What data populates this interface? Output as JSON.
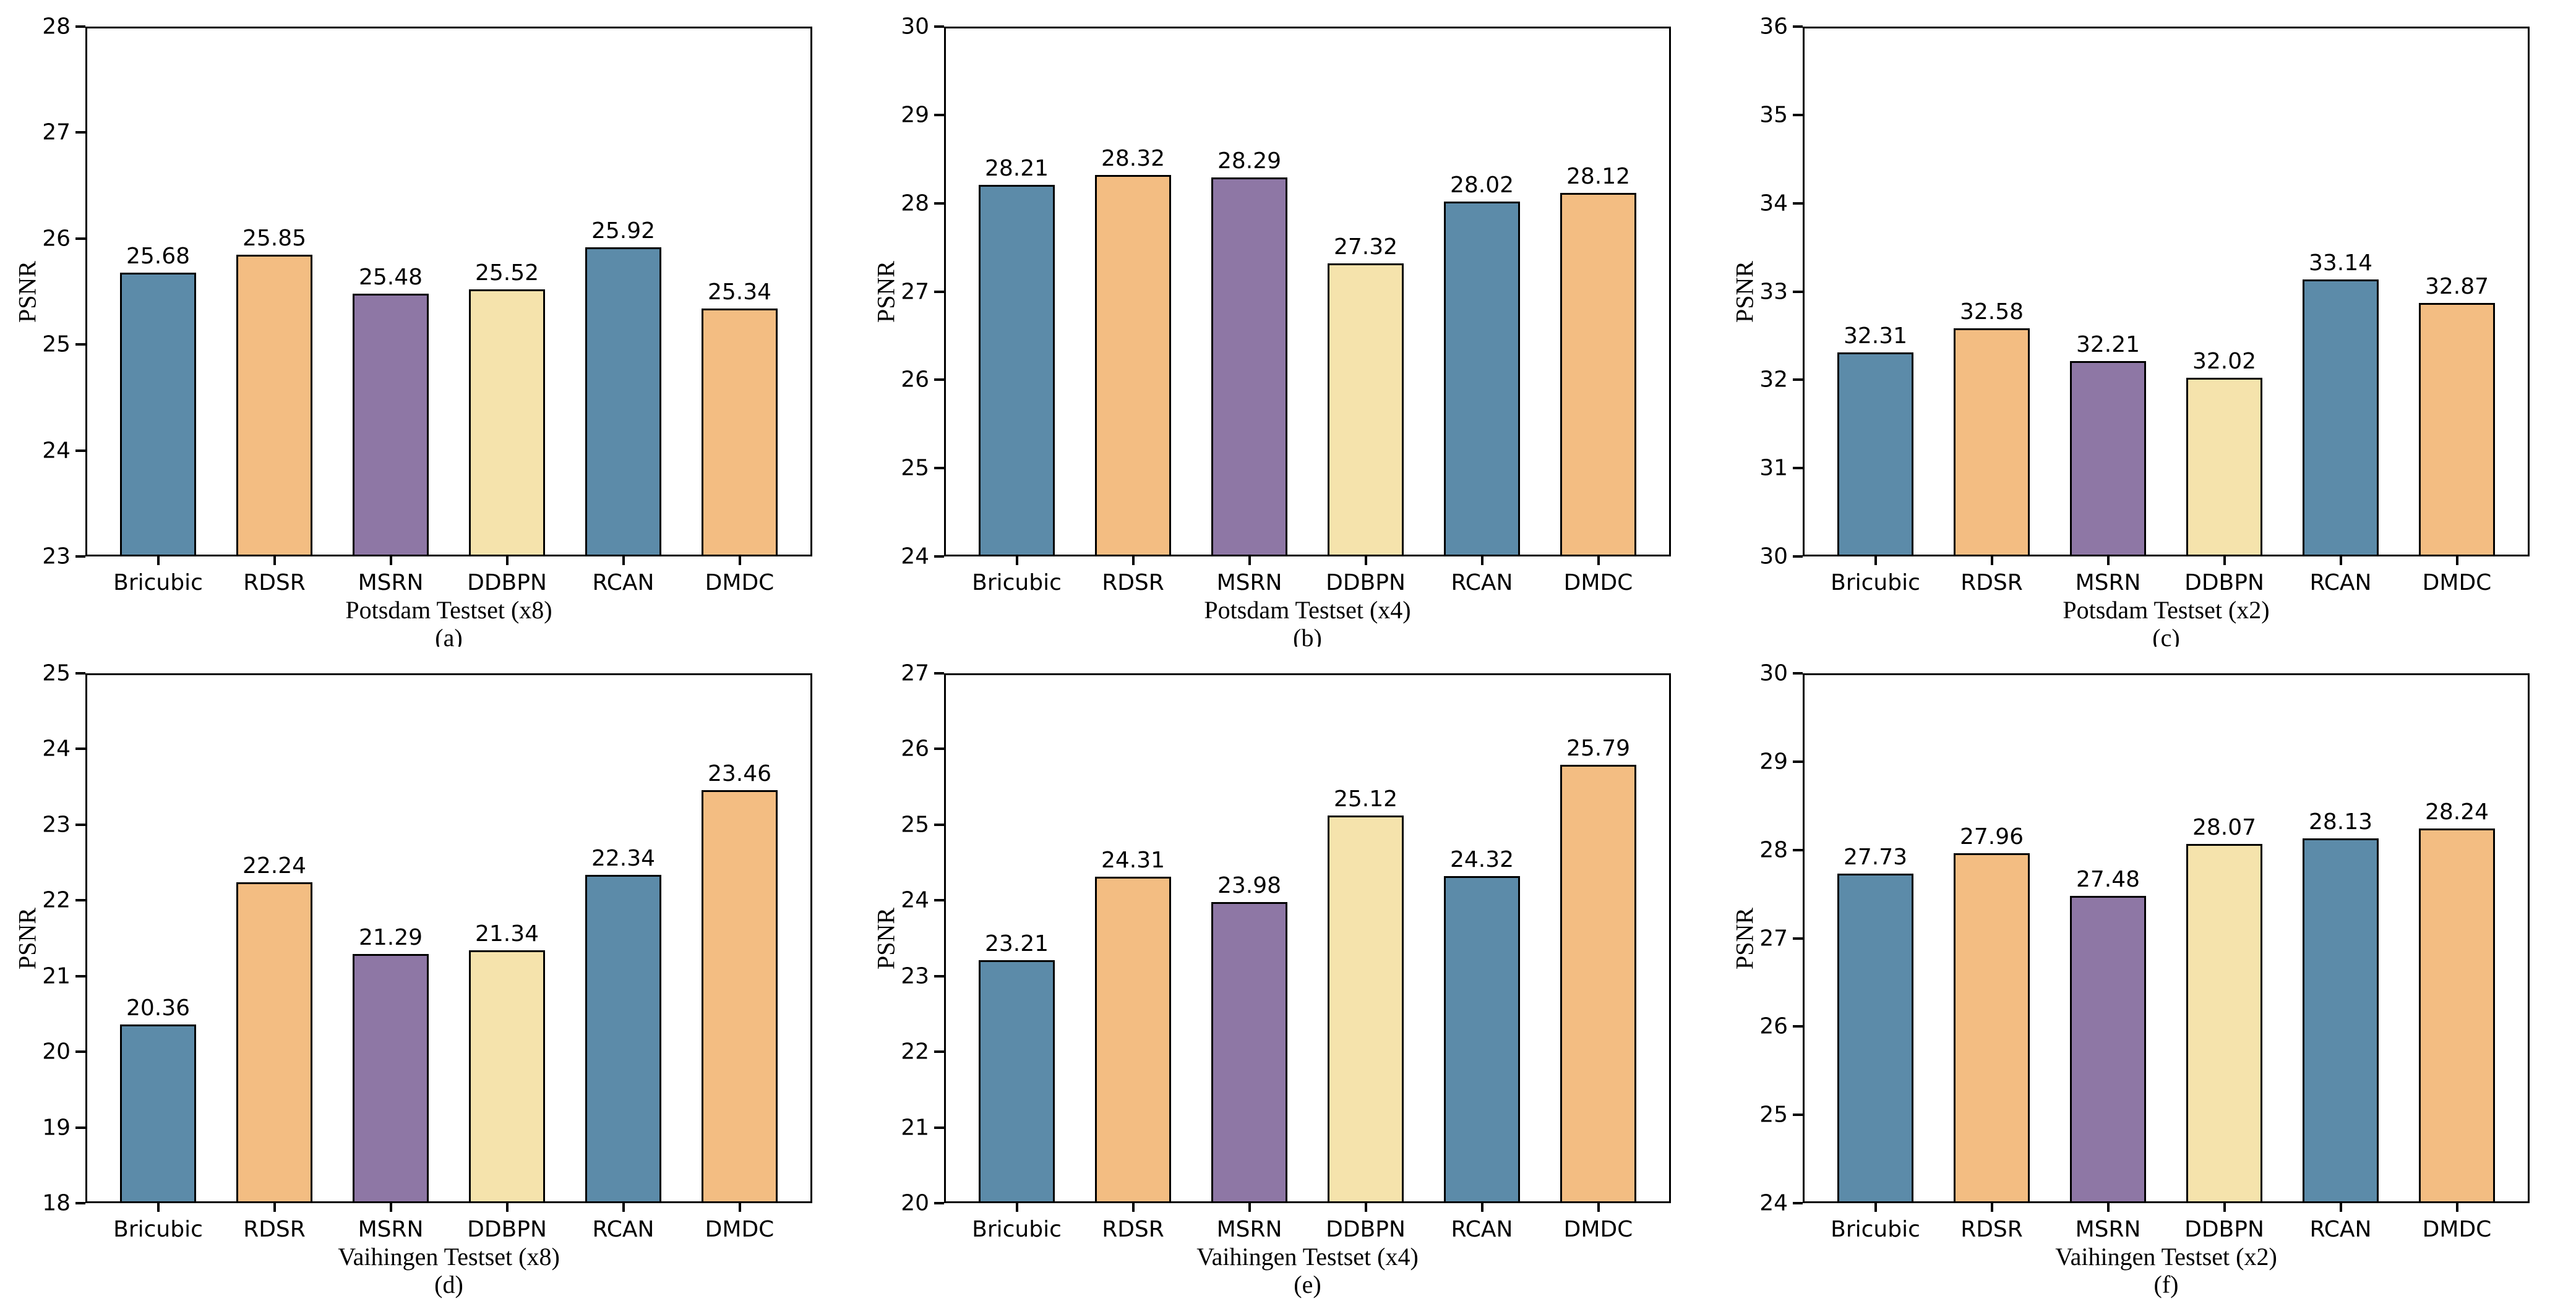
{
  "figure": {
    "background": "#ffffff",
    "axis_color": "#000000",
    "text_color": "#000000",
    "palette": {
      "blue": "#5C8BA9",
      "orange": "#F3BD82",
      "purple": "#8E77A5",
      "cream": "#F5E3AC",
      "bar_edge": "#000000"
    }
  },
  "chart_data": [
    {
      "type": "bar",
      "panel_label": "(a)",
      "xlabel": "Potsdam Testset (x8)",
      "ylabel": "PSNR",
      "ylim": [
        23,
        28
      ],
      "ytick_step": 1,
      "grid": false,
      "legend": "none",
      "categories": [
        "Bricubic",
        "RDSR",
        "MSRN",
        "DDBPN",
        "RCAN",
        "DMDC"
      ],
      "values": [
        25.68,
        25.85,
        25.48,
        25.52,
        25.92,
        25.34
      ],
      "value_labels": [
        "25.68",
        "25.85",
        "25.48",
        "25.52",
        "25.92",
        "25.34"
      ],
      "bar_colors": [
        "blue",
        "orange",
        "purple",
        "cream",
        "blue",
        "orange"
      ]
    },
    {
      "type": "bar",
      "panel_label": "(b)",
      "xlabel": "Potsdam Testset (x4)",
      "ylabel": "PSNR",
      "ylim": [
        24,
        30
      ],
      "ytick_step": 1,
      "grid": false,
      "legend": "none",
      "categories": [
        "Bricubic",
        "RDSR",
        "MSRN",
        "DDBPN",
        "RCAN",
        "DMDC"
      ],
      "values": [
        28.21,
        28.32,
        28.29,
        27.32,
        28.02,
        28.12
      ],
      "value_labels": [
        "28.21",
        "28.32",
        "28.29",
        "27.32",
        "28.02",
        "28.12"
      ],
      "bar_colors": [
        "blue",
        "orange",
        "purple",
        "cream",
        "blue",
        "orange"
      ]
    },
    {
      "type": "bar",
      "panel_label": "(c)",
      "xlabel": "Potsdam Testset (x2)",
      "ylabel": "PSNR",
      "ylim": [
        30,
        36
      ],
      "ytick_step": 1,
      "grid": false,
      "legend": "none",
      "categories": [
        "Bricubic",
        "RDSR",
        "MSRN",
        "DDBPN",
        "RCAN",
        "DMDC"
      ],
      "values": [
        32.31,
        32.58,
        32.21,
        32.02,
        33.14,
        32.87
      ],
      "value_labels": [
        "32.31",
        "32.58",
        "32.21",
        "32.02",
        "33.14",
        "32.87"
      ],
      "bar_colors": [
        "blue",
        "orange",
        "purple",
        "cream",
        "blue",
        "orange"
      ]
    },
    {
      "type": "bar",
      "panel_label": "(d)",
      "xlabel": "Vaihingen Testset (x8)",
      "ylabel": "PSNR",
      "ylim": [
        18,
        25
      ],
      "ytick_step": 1,
      "grid": false,
      "legend": "none",
      "categories": [
        "Bricubic",
        "RDSR",
        "MSRN",
        "DDBPN",
        "RCAN",
        "DMDC"
      ],
      "values": [
        20.36,
        22.24,
        21.29,
        21.34,
        22.34,
        23.46
      ],
      "value_labels": [
        "20.36",
        "22.24",
        "21.29",
        "21.34",
        "22.34",
        "23.46"
      ],
      "bar_colors": [
        "blue",
        "orange",
        "purple",
        "cream",
        "blue",
        "orange"
      ]
    },
    {
      "type": "bar",
      "panel_label": "(e)",
      "xlabel": "Vaihingen Testset (x4)",
      "ylabel": "PSNR",
      "ylim": [
        20,
        27
      ],
      "ytick_step": 1,
      "grid": false,
      "legend": "none",
      "categories": [
        "Bricubic",
        "RDSR",
        "MSRN",
        "DDBPN",
        "RCAN",
        "DMDC"
      ],
      "values": [
        23.21,
        24.31,
        23.98,
        25.12,
        24.32,
        25.79
      ],
      "value_labels": [
        "23.21",
        "24.31",
        "23.98",
        "25.12",
        "24.32",
        "25.79"
      ],
      "bar_colors": [
        "blue",
        "orange",
        "purple",
        "cream",
        "blue",
        "orange"
      ]
    },
    {
      "type": "bar",
      "panel_label": "(f)",
      "xlabel": "Vaihingen Testset (x2)",
      "ylabel": "PSNR",
      "ylim": [
        24,
        30
      ],
      "ytick_step": 1,
      "grid": false,
      "legend": "none",
      "categories": [
        "Bricubic",
        "RDSR",
        "MSRN",
        "DDBPN",
        "RCAN",
        "DMDC"
      ],
      "values": [
        27.73,
        27.96,
        27.48,
        28.07,
        28.13,
        28.24
      ],
      "value_labels": [
        "27.73",
        "27.96",
        "27.48",
        "28.07",
        "28.13",
        "28.24"
      ],
      "bar_colors": [
        "blue",
        "orange",
        "purple",
        "cream",
        "blue",
        "orange"
      ]
    }
  ]
}
